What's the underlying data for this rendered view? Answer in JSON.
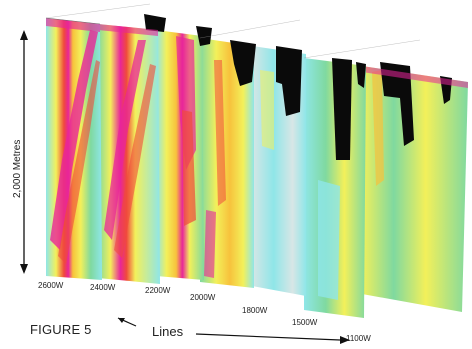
{
  "figure_label": "FIGURE 5",
  "depth_axis_label": "2,000 Metres",
  "lines_axis_label": "Lines",
  "lines": [
    "2600W",
    "2400W",
    "2200W",
    "2000W",
    "1800W",
    "1500W",
    "1100W"
  ],
  "colors": {
    "low": "#8fe6e8",
    "low_mid": "#7fd9a0",
    "mid": "#f3f05a",
    "mid_high": "#f7c23c",
    "high": "#f04a3c",
    "max": "#e8259a",
    "gap": "#0a0a0a",
    "bleached": "#d8e6e6"
  }
}
